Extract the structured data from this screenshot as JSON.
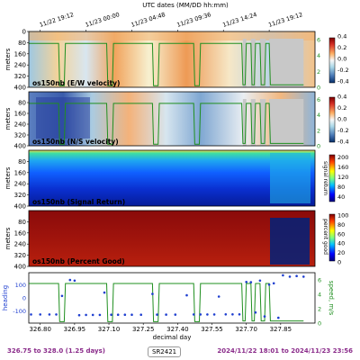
{
  "top_axis": {
    "title": "UTC dates (MM/DD hh:mm)",
    "ticks": [
      "11/22 19:12",
      "11/23 00:00",
      "11/23 04:48",
      "11/23 09:36",
      "11/23 14:24",
      "11/23 19:12"
    ],
    "tick_days": [
      326.8,
      327.0,
      327.2,
      327.4,
      327.6,
      327.8
    ]
  },
  "bottom_axis": {
    "title": "decimal day",
    "ticks": [
      "326.80",
      "326.95",
      "327.10",
      "327.25",
      "327.40",
      "327.55",
      "327.70",
      "327.85"
    ],
    "tick_values": [
      326.8,
      326.95,
      327.1,
      327.25,
      327.4,
      327.55,
      327.7,
      327.85
    ],
    "xlim": [
      326.75,
      328.0
    ]
  },
  "footer": {
    "left": "326.75 to 328.0 (1.25 days)",
    "center": "SR2421",
    "right": "2024/11/22 18:01 to 2024/11/23 23:56"
  },
  "colors": {
    "footer_text": "#8a2b8a",
    "speed_line": "#1f8f1f",
    "heading_points": "#1f3fd0",
    "gap_gray": "#c8c8c8"
  },
  "chart_data": [
    {
      "type": "heatmap",
      "label": "os150nb (E/W velocity)",
      "ylabel": "meters",
      "yticks": [
        "0",
        "80",
        "160",
        "240",
        "320",
        "400"
      ],
      "ylim": [
        400,
        0
      ],
      "colorbar": {
        "ticks": [
          "0.4",
          "0.2",
          "0.0",
          "-0.2",
          "-0.4"
        ],
        "range": [
          -0.4,
          0.4
        ],
        "colormap": "diverging-red-blue"
      },
      "right_axis": {
        "ticks": [
          "6",
          "4",
          "2",
          "0"
        ],
        "range": [
          0,
          7
        ]
      },
      "overlay": "ship speed"
    },
    {
      "type": "heatmap",
      "label": "os150nb (N/S velocity)",
      "ylabel": "meters",
      "yticks": [
        "80",
        "160",
        "240",
        "320",
        "400"
      ],
      "ylim": [
        400,
        0
      ],
      "colorbar": {
        "ticks": [
          "0.4",
          "0.2",
          "0.0",
          "-0.2",
          "-0.4"
        ],
        "range": [
          -0.4,
          0.4
        ],
        "colormap": "diverging-red-blue"
      },
      "right_axis": {
        "ticks": [
          "6",
          "4",
          "2",
          "0"
        ],
        "range": [
          0,
          7
        ]
      },
      "overlay": "ship speed"
    },
    {
      "type": "heatmap",
      "label": "os150nb (Signal Return)",
      "ylabel": "meters",
      "yticks": [
        "80",
        "160",
        "240",
        "320",
        "400"
      ],
      "ylim": [
        400,
        0
      ],
      "colorbar": {
        "label": "signal return",
        "ticks": [
          "200",
          "160",
          "120",
          "80",
          "40"
        ],
        "range": [
          20,
          210
        ],
        "colormap": "jet"
      }
    },
    {
      "type": "heatmap",
      "label": "os150nb (Percent Good)",
      "ylabel": "meters",
      "yticks": [
        "80",
        "160",
        "240",
        "320",
        "400"
      ],
      "ylim": [
        400,
        0
      ],
      "colorbar": {
        "label": "percent good",
        "ticks": [
          "100",
          "80",
          "60",
          "40",
          "20",
          "0"
        ],
        "range": [
          0,
          100
        ],
        "colormap": "jet"
      }
    },
    {
      "type": "line",
      "ylabel": "heading",
      "yticks": [
        "100",
        "0",
        "-100"
      ],
      "ylim": [
        -190,
        190
      ],
      "right_axis": {
        "label": "speed, m/s",
        "ticks": [
          "6",
          "4",
          "2",
          "0"
        ],
        "range": [
          0,
          7
        ]
      },
      "series": [
        {
          "name": "heading",
          "style": "points",
          "x": [
            326.76,
            326.8,
            326.84,
            326.87,
            326.895,
            326.93,
            326.95,
            326.97,
            327.0,
            327.03,
            327.06,
            327.08,
            327.11,
            327.14,
            327.17,
            327.2,
            327.24,
            327.29,
            327.31,
            327.35,
            327.39,
            327.44,
            327.47,
            327.5,
            327.53,
            327.56,
            327.58,
            327.61,
            327.64,
            327.67,
            327.7,
            327.72,
            327.74,
            327.76,
            327.78,
            327.8,
            327.82,
            327.84,
            327.86,
            327.89,
            327.92,
            327.95
          ],
          "y": [
            -125,
            -125,
            -125,
            -125,
            15,
            135,
            130,
            -130,
            -128,
            -128,
            -128,
            40,
            -127,
            -127,
            -127,
            -127,
            -127,
            30,
            -126,
            -126,
            -126,
            20,
            -125,
            -125,
            -125,
            -125,
            10,
            -124,
            -124,
            -124,
            120,
            118,
            -110,
            130,
            -140,
            100,
            110,
            -150,
            170,
            160,
            165,
            160
          ]
        },
        {
          "name": "speed",
          "style": "line",
          "x": [
            326.75,
            326.88,
            326.885,
            326.905,
            326.91,
            327.09,
            327.095,
            327.115,
            327.12,
            327.29,
            327.295,
            327.315,
            327.32,
            327.47,
            327.475,
            327.495,
            327.5,
            327.68,
            327.685,
            327.695,
            327.7,
            327.72,
            327.725,
            327.735,
            327.74,
            327.76,
            327.765,
            327.78,
            327.785,
            327.8,
            327.805,
            327.95
          ],
          "y": [
            5.5,
            5.5,
            0.2,
            0.2,
            5.5,
            5.5,
            0.2,
            0.2,
            5.5,
            5.5,
            0.2,
            0.2,
            5.5,
            5.5,
            0.2,
            0.2,
            5.5,
            5.5,
            0.3,
            0.3,
            5.5,
            5.5,
            0.3,
            0.3,
            5.5,
            5.5,
            0.3,
            0.3,
            5.5,
            5.5,
            0.3,
            0.3
          ]
        }
      ]
    }
  ]
}
